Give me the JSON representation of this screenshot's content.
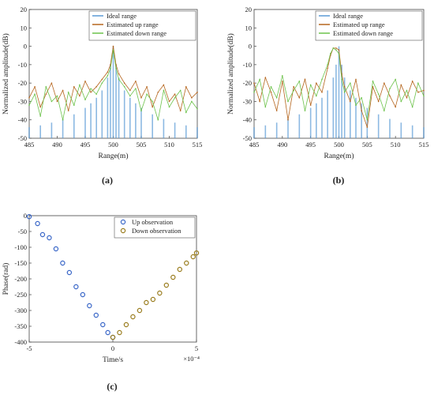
{
  "panel_labels": [
    "(a)",
    "(b)",
    "(c)"
  ],
  "chart_data": [
    {
      "type": "line",
      "panel": "(a)",
      "xlabel": "Range(m)",
      "ylabel": "Normalized amplitude(dB)",
      "xlim": [
        485,
        515
      ],
      "ylim": [
        -50,
        20
      ],
      "xticks": [
        485,
        490,
        495,
        500,
        505,
        510,
        515
      ],
      "yticks": [
        20,
        10,
        0,
        -10,
        -20,
        -30,
        -40,
        -50
      ],
      "legend_position": "top-right",
      "grid": false,
      "series": [
        {
          "name": "Ideal range",
          "color": "#5b9bd5",
          "style": "stems",
          "x": [
            485,
            487,
            489,
            491,
            493,
            495,
            496,
            497,
            498,
            499,
            499.5,
            500,
            500.5,
            501,
            502,
            503,
            504,
            505,
            507,
            509,
            511,
            513,
            515
          ],
          "y": [
            -44,
            -43,
            -41.5,
            -39.5,
            -37,
            -33.5,
            -31,
            -28,
            -24,
            -17,
            -10,
            0,
            -10,
            -17,
            -24,
            -28,
            -31,
            -33.5,
            -37,
            -39.5,
            -41.5,
            -43,
            -44
          ]
        },
        {
          "name": "Estimated up range",
          "color": "#b5651d",
          "style": "line",
          "x": [
            485,
            486,
            487,
            488,
            489,
            490,
            491,
            492,
            493,
            494,
            495,
            496,
            497,
            498,
            499,
            499.5,
            500,
            500.5,
            501,
            502,
            503,
            504,
            505,
            506,
            507,
            508,
            509,
            510,
            511,
            512,
            513,
            514,
            515
          ],
          "y": [
            -28,
            -22,
            -33,
            -26,
            -20,
            -30,
            -24,
            -35,
            -22,
            -27,
            -19,
            -25,
            -22,
            -18,
            -14,
            -10,
            0,
            -10,
            -15,
            -20,
            -24,
            -19,
            -28,
            -22,
            -33,
            -25,
            -21,
            -30,
            -26,
            -35,
            -22,
            -28,
            -25
          ]
        },
        {
          "name": "Estimated down range",
          "color": "#6cc24a",
          "style": "line",
          "x": [
            485,
            486,
            487,
            488,
            489,
            490,
            491,
            492,
            493,
            494,
            495,
            496,
            497,
            498,
            499,
            499.5,
            500,
            500.5,
            501,
            502,
            503,
            504,
            505,
            506,
            507,
            508,
            509,
            510,
            511,
            512,
            513,
            514,
            515
          ],
          "y": [
            -32,
            -26,
            -38,
            -22,
            -30,
            -27,
            -40,
            -25,
            -32,
            -21,
            -29,
            -23,
            -26,
            -20,
            -16,
            -12,
            -2,
            -12,
            -18,
            -22,
            -27,
            -23,
            -35,
            -26,
            -30,
            -40,
            -24,
            -33,
            -28,
            -24,
            -36,
            -30,
            -34
          ]
        }
      ]
    },
    {
      "type": "line",
      "panel": "(b)",
      "xlabel": "Range(m)",
      "ylabel": "Normalized amplitude(dB)",
      "xlim": [
        485,
        515
      ],
      "ylim": [
        -50,
        20
      ],
      "xticks": [
        485,
        490,
        495,
        500,
        505,
        510,
        515
      ],
      "yticks": [
        20,
        10,
        0,
        -10,
        -20,
        -30,
        -40,
        -50
      ],
      "legend_position": "top-right",
      "grid": false,
      "series": [
        {
          "name": "Ideal range",
          "color": "#5b9bd5",
          "style": "stems",
          "x": [
            485,
            487,
            489,
            491,
            493,
            495,
            496,
            497,
            498,
            499,
            499.5,
            500,
            500.5,
            501,
            502,
            503,
            504,
            505,
            507,
            509,
            511,
            513,
            515
          ],
          "y": [
            -44,
            -43,
            -41.5,
            -39.5,
            -37,
            -33.5,
            -31,
            -28,
            -24,
            -17,
            -10,
            0,
            -10,
            -17,
            -24,
            -28,
            -31,
            -33.5,
            -37,
            -39.5,
            -41.5,
            -43,
            -44
          ]
        },
        {
          "name": "Estimated up range",
          "color": "#b5651d",
          "style": "line",
          "x": [
            485,
            486,
            487,
            488,
            489,
            490,
            491,
            492,
            493,
            494,
            495,
            496,
            497,
            498,
            498.5,
            499,
            499.5,
            500,
            500.5,
            501,
            502,
            503,
            504,
            505,
            506,
            507,
            508,
            509,
            510,
            511,
            512,
            513,
            514,
            515
          ],
          "y": [
            -20,
            -30,
            -17,
            -25,
            -35,
            -19,
            -40,
            -22,
            -28,
            -18,
            -32,
            -20,
            -25,
            -12,
            -5,
            -1,
            -1,
            -2,
            -15,
            -22,
            -30,
            -18,
            -35,
            -44,
            -22,
            -30,
            -20,
            -27,
            -33,
            -21,
            -28,
            -19,
            -25,
            -24
          ]
        },
        {
          "name": "Estimated down range",
          "color": "#6cc24a",
          "style": "line",
          "x": [
            485,
            486,
            487,
            488,
            489,
            490,
            491,
            492,
            493,
            494,
            495,
            496,
            497,
            498,
            498.5,
            499,
            499.5,
            500,
            500.5,
            501,
            502,
            503,
            504,
            505,
            506,
            507,
            508,
            509,
            510,
            511,
            512,
            513,
            514,
            515
          ],
          "y": [
            -25,
            -18,
            -33,
            -22,
            -28,
            -16,
            -30,
            -24,
            -19,
            -35,
            -21,
            -27,
            -18,
            -10,
            -4,
            -1,
            -2,
            -4,
            -18,
            -25,
            -20,
            -32,
            -28,
            -40,
            -19,
            -26,
            -35,
            -23,
            -18,
            -30,
            -24,
            -33,
            -20,
            -27
          ]
        }
      ]
    },
    {
      "type": "scatter",
      "panel": "(c)",
      "xlabel": "Time/s",
      "ylabel": "Phase(rad)",
      "x_multiplier": "×10⁻⁴",
      "xlim": [
        -5,
        5
      ],
      "ylim": [
        -400,
        0
      ],
      "xticks": [
        -5,
        0,
        5
      ],
      "yticks": [
        0,
        -50,
        -100,
        -150,
        -200,
        -250,
        -300,
        -350,
        -400
      ],
      "legend_position": "top-right",
      "grid": false,
      "series": [
        {
          "name": "Up observation",
          "color": "#3a67c8",
          "marker": "o",
          "x": [
            -5,
            -4.5,
            -4.2,
            -3.8,
            -3.4,
            -3.0,
            -2.6,
            -2.2,
            -1.8,
            -1.4,
            -1.0,
            -0.6,
            -0.3,
            0
          ],
          "y": [
            -3,
            -25,
            -60,
            -70,
            -105,
            -150,
            -180,
            -225,
            -250,
            -285,
            -315,
            -345,
            -370,
            -385
          ]
        },
        {
          "name": "Down observation",
          "color": "#9a7d1f",
          "marker": "o",
          "x": [
            0,
            0.4,
            0.8,
            1.2,
            1.6,
            2.0,
            2.4,
            2.8,
            3.2,
            3.6,
            4.0,
            4.4,
            4.8,
            5
          ],
          "y": [
            -385,
            -370,
            -345,
            -320,
            -300,
            -275,
            -265,
            -245,
            -220,
            -195,
            -170,
            -150,
            -130,
            -118
          ]
        }
      ]
    }
  ]
}
